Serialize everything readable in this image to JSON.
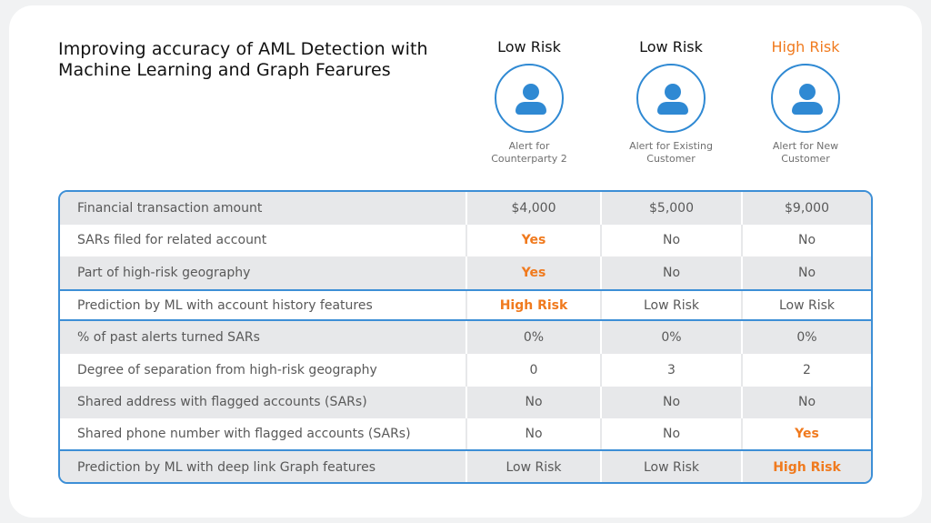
{
  "title": "Improving accuracy of AML Detection with Machine Learning and Graph Fearures",
  "columns": [
    {
      "risk": "Low Risk",
      "caption_line1": "Alert for",
      "caption_line2": "Counterparty 2"
    },
    {
      "risk": "Low Risk",
      "caption_line1": "Alert for Existing",
      "caption_line2": "Customer"
    },
    {
      "risk": "High Risk",
      "caption_line1": "Alert for New",
      "caption_line2": "Customer"
    }
  ],
  "rows": [
    {
      "label": "Financial transaction amount",
      "values": [
        "$4,000",
        "$5,000",
        "$9,000"
      ]
    },
    {
      "label": "SARs filed for related account",
      "values": [
        "Yes",
        "No",
        "No"
      ]
    },
    {
      "label": "Part of high-risk geography",
      "values": [
        "Yes",
        "No",
        "No"
      ]
    },
    {
      "label": "Prediction by ML with account history features",
      "values": [
        "High Risk",
        "Low Risk",
        "Low Risk"
      ]
    },
    {
      "label": "% of past alerts turned SARs",
      "values": [
        "0%",
        "0%",
        "0%"
      ]
    },
    {
      "label": "Degree of separation from high-risk geography",
      "values": [
        "0",
        "3",
        "2"
      ]
    },
    {
      "label": "Shared address with flagged accounts (SARs)",
      "values": [
        "No",
        "No",
        "No"
      ]
    },
    {
      "label": "Shared phone number with flagged accounts (SARs)",
      "values": [
        "No",
        "No",
        "Yes"
      ]
    },
    {
      "label": "Prediction by ML with deep link Graph features",
      "values": [
        "Low Risk",
        "Low Risk",
        "High Risk"
      ]
    }
  ],
  "colors": {
    "accent_blue": "#2f89d3",
    "highlight_orange": "#f07a1e"
  },
  "icons": {
    "avatar": "person-icon"
  }
}
